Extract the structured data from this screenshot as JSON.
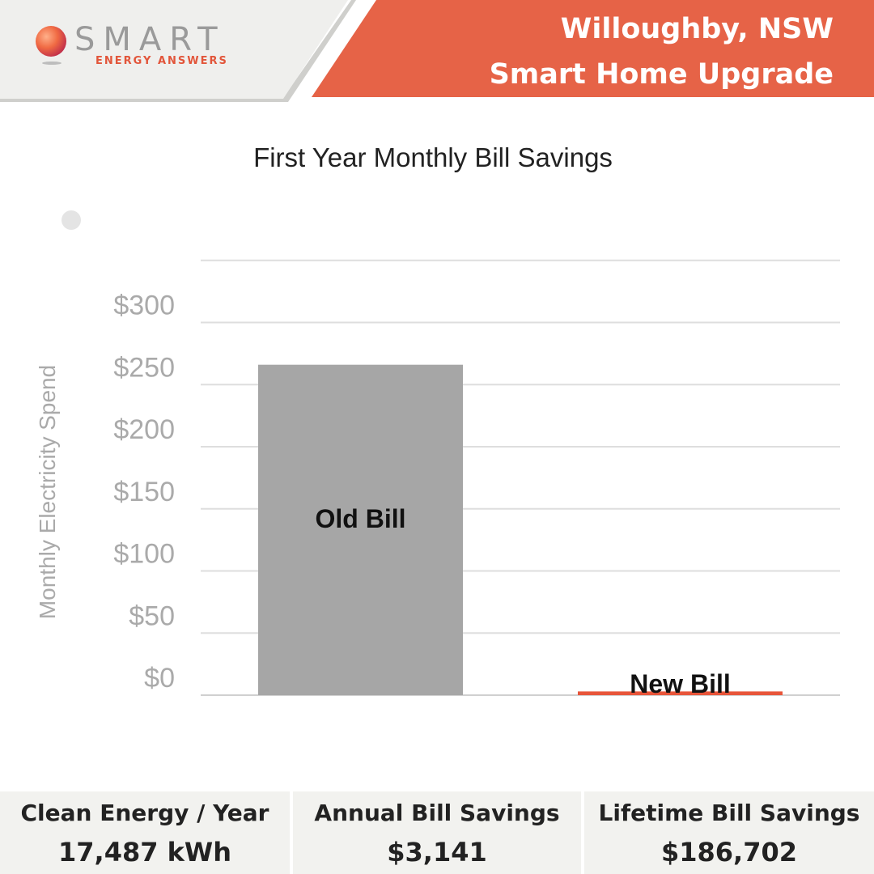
{
  "header": {
    "logo_word": "SMART",
    "logo_sub": "ENERGY ANSWERS",
    "location": "Willoughby, NSW",
    "project": "Smart Home Upgrade",
    "accent": "#e66347"
  },
  "chart_data": {
    "type": "bar",
    "title": "First Year Monthly Bill Savings",
    "ylabel": "Monthly Electricity Spend",
    "xlabel": "",
    "categories": [
      "Old Bill",
      "New Bill"
    ],
    "values": [
      266,
      3
    ],
    "colors": [
      "#a6a6a6",
      "#e8553a"
    ],
    "ylim": [
      0,
      350
    ],
    "yticks": [
      0,
      50,
      100,
      150,
      200,
      250,
      300
    ],
    "ytick_labels": [
      "$0",
      "$50",
      "$100",
      "$150",
      "$200",
      "$250",
      "$300"
    ],
    "grid": true,
    "legend": "top-left"
  },
  "stats": [
    {
      "label": "Clean Energy / Year",
      "value": "17,487 kWh"
    },
    {
      "label": "Annual Bill Savings",
      "value": "$3,141"
    },
    {
      "label": "Lifetime Bill Savings",
      "value": "$186,702"
    }
  ]
}
